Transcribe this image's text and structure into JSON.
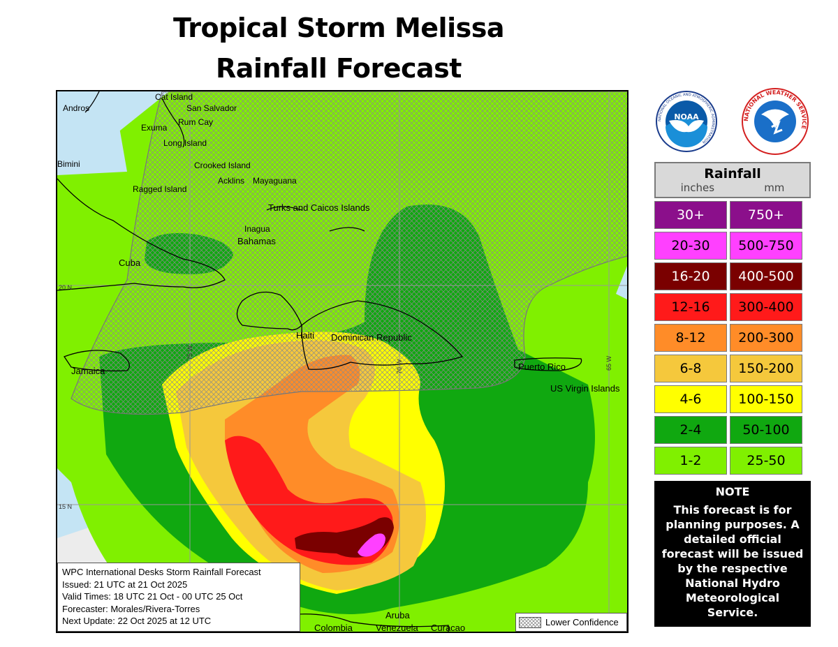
{
  "header": {
    "title_line1": "Tropical Storm Melissa",
    "title_line2": "Rainfall Forecast"
  },
  "logos": [
    {
      "name": "noaa-logo",
      "text": "NOAA",
      "ring_text": "NATIONAL OCEANIC AND ATMOSPHERIC ADMINISTRATION"
    },
    {
      "name": "nws-logo",
      "ring_text": "NATIONAL WEATHER SERVICE"
    }
  ],
  "legend": {
    "title": "Rainfall",
    "unit_in": "inches",
    "unit_mm": "mm",
    "rows": [
      {
        "in": "30+",
        "mm": "750+",
        "color": "#8b0f8b",
        "text_color": "#ffffff"
      },
      {
        "in": "20-30",
        "mm": "500-750",
        "color": "#ff40ff",
        "text_color": "#000000"
      },
      {
        "in": "16-20",
        "mm": "400-500",
        "color": "#7a0000",
        "text_color": "#ffffff"
      },
      {
        "in": "12-16",
        "mm": "300-400",
        "color": "#ff1a1a",
        "text_color": "#000000"
      },
      {
        "in": "8-12",
        "mm": "200-300",
        "color": "#ff8c28",
        "text_color": "#000000"
      },
      {
        "in": "6-8",
        "mm": "150-200",
        "color": "#f5c83c",
        "text_color": "#000000"
      },
      {
        "in": "4-6",
        "mm": "100-150",
        "color": "#ffff00",
        "text_color": "#000000"
      },
      {
        "in": "2-4",
        "mm": "50-100",
        "color": "#10a810",
        "text_color": "#000000"
      },
      {
        "in": "1-2",
        "mm": "25-50",
        "color": "#80f000",
        "text_color": "#000000"
      }
    ]
  },
  "note": {
    "heading": "NOTE",
    "body": "This forecast is for planning purposes. A detailed official forecast will be issued by the respective National Hydro Meteorological Service."
  },
  "info": {
    "lines": [
      "WPC International Desks Storm Rainfall Forecast",
      "Issued: 21 UTC at 21 Oct 2025",
      "Valid Times: 18 UTC 21 Oct - 00 UTC 25 Oct",
      "Forecaster: Morales/Rivera-Torres",
      "Next Update: 22 Oct 2025 at 12 UTC"
    ]
  },
  "lower_confidence_label": "Lower Confidence",
  "map": {
    "gridlines": {
      "lat": [
        "20 N",
        "15 N"
      ],
      "lon": [
        "75 W",
        "70 W",
        "65 W"
      ]
    },
    "place_labels": [
      "Cat Island",
      "Andros",
      "San Salvador",
      "Exuma",
      "Rum Cay",
      "Long Island",
      "Bimini",
      "Crooked Island",
      "Ragged Island",
      "Acklins",
      "Mayaguana",
      "Turks and Caicos Islands",
      "Inagua",
      "Bahamas",
      "Cuba",
      "Haiti",
      "Dominican Republic",
      "Jamaica",
      "Puerto Rico",
      "US Virgin Islands",
      "Aruba",
      "Colombia",
      "Venezuela",
      "Curacao"
    ],
    "colors": {
      "ocean": "#c4e4f4",
      "land": "#ececec"
    }
  }
}
